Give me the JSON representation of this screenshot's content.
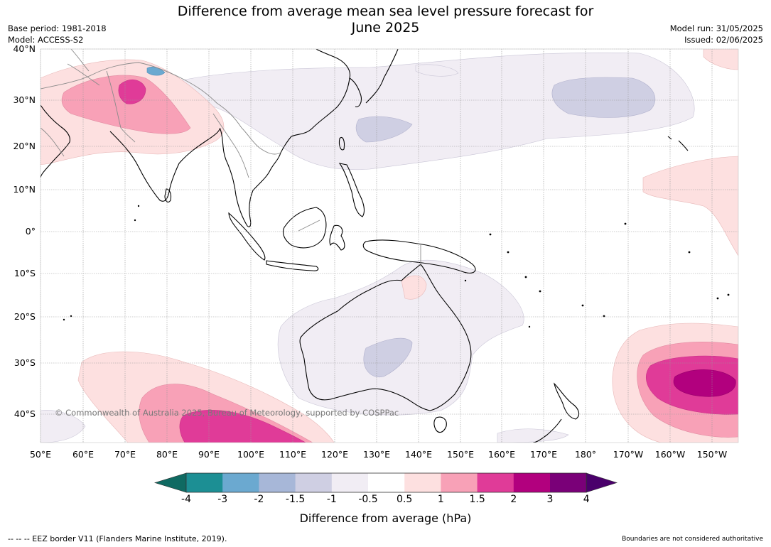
{
  "header": {
    "title_line1": "Difference from average mean sea level pressure forecast for",
    "title_line2": "June 2025",
    "base_period": "Base period: 1981-2018",
    "model": "Model: ACCESS-S2",
    "model_run": "Model run: 31/05/2025",
    "issued": "Issued: 02/06/2025"
  },
  "axes": {
    "lat_labels": [
      "40°N",
      "30°N",
      "20°N",
      "10°N",
      "0°",
      "10°S",
      "20°S",
      "30°S",
      "40°S"
    ],
    "lon_labels": [
      "50°E",
      "60°E",
      "70°E",
      "80°E",
      "90°E",
      "100°E",
      "110°E",
      "120°E",
      "130°E",
      "140°E",
      "150°E",
      "160°E",
      "170°E",
      "180°",
      "170°W",
      "160°W",
      "150°W"
    ]
  },
  "map": {
    "copyright": "© Commonwealth of Australia 2025, Bureau of Meteorology, supported by COSPPac"
  },
  "colorbar": {
    "tick_labels": [
      "-4",
      "-3",
      "-2",
      "-1.5",
      "-1",
      "-0.5",
      "0.5",
      "1",
      "1.5",
      "2",
      "3",
      "4"
    ],
    "colors": [
      "#1c8f94",
      "#6ba9d0",
      "#a7b7d8",
      "#cfcfe3",
      "#f1edf4",
      "#ffffff",
      "#fde0e0",
      "#f8a1b7",
      "#e03b98",
      "#b2007e",
      "#7a0078"
    ],
    "under_color": "#0f6a62",
    "over_color": "#4a006b",
    "label": "Difference from average (hPa)"
  },
  "footer": {
    "eez": "--  --  -- EEZ border V11 (Flanders Marine Institute, 2019).",
    "boundaries": "Boundaries are not considered authoritative"
  }
}
